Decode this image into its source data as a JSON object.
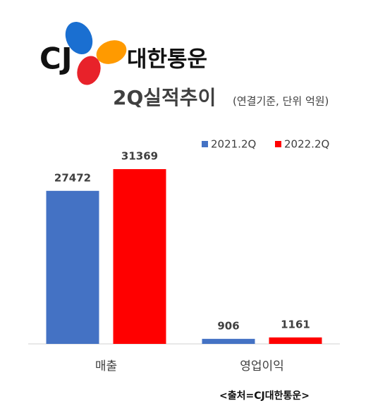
{
  "header": {
    "logo": "CJ",
    "company": "대한통운"
  },
  "chart_data": {
    "type": "bar",
    "title": "2Q실적추이",
    "subtitle": "(연결기준, 단위 억원)",
    "categories": [
      "매출",
      "영업이익"
    ],
    "series": [
      {
        "name": "2021.2Q",
        "color": "#4472c4",
        "values": [
          27472,
          906
        ]
      },
      {
        "name": "2022.2Q",
        "color": "#ff0000",
        "values": [
          31369,
          1161
        ]
      }
    ],
    "legend": "top-right"
  },
  "source": "<출처=CJ대한통운>"
}
